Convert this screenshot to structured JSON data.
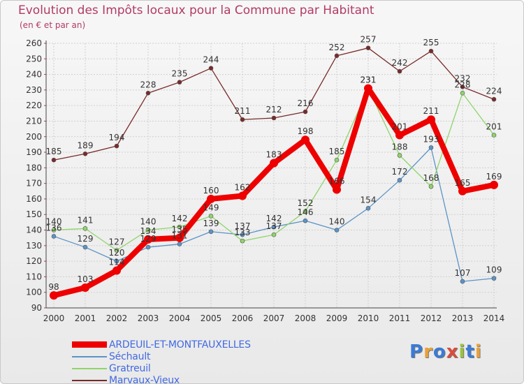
{
  "title": "Evolution des Impôts locaux pour la Commune par Habitant",
  "subtitle": "(en € et par an)",
  "logo": {
    "text": "Proxiti",
    "colors": [
      "#3a7bd5",
      "#e8a13a",
      "#3a7bd5",
      "#d94c3b",
      "#9ac23c",
      "#3a7bd5",
      "#e8a13a"
    ]
  },
  "chart_data": {
    "type": "line",
    "title": "Evolution des Impôts locaux pour la Commune par Habitant",
    "subtitle": "(en € et par an)",
    "xlabel": "",
    "ylabel": "",
    "ylim": [
      90,
      260
    ],
    "ytick_step": 10,
    "grid": true,
    "legend_position": "bottom-left",
    "x": [
      "2000",
      "2001",
      "2002",
      "2003",
      "2004",
      "2005",
      "2006",
      "2007",
      "2008",
      "2009",
      "2010",
      "2011",
      "2012",
      "2013",
      "2014"
    ],
    "series": [
      {
        "name": "ARDEUIL-ET-MONTFAUXELLES",
        "color": "#ee0000",
        "emphasis": true,
        "values": [
          98,
          103,
          114,
          134,
          135,
          160,
          162,
          183,
          198,
          166,
          231,
          201,
          211,
          165,
          169
        ],
        "labels": [
          "98",
          "103",
          "114",
          "134",
          "135",
          "160",
          "162",
          "183",
          "198",
          "166",
          "231",
          "201",
          "211",
          "165",
          "169"
        ]
      },
      {
        "name": "Séchault",
        "color": "#5b93c7",
        "values": [
          136,
          129,
          120,
          129,
          131,
          139,
          137,
          142,
          146,
          140,
          154,
          172,
          193,
          107,
          109
        ],
        "labels": [
          "136",
          "129",
          "120",
          "129",
          "131",
          "139",
          "137",
          "142",
          "146",
          "140",
          "154",
          "172",
          "193",
          "107",
          "109"
        ]
      },
      {
        "name": "Gratreuil",
        "color": "#8fd46a",
        "values": [
          140,
          141,
          127,
          140,
          142,
          149,
          133,
          137,
          152,
          185,
          231,
          188,
          168,
          228,
          201
        ],
        "labels": [
          "140",
          "141",
          "127",
          "140",
          "142",
          "149",
          "133",
          "137",
          "152",
          "185",
          "231",
          "188",
          "168",
          "228",
          "201"
        ]
      },
      {
        "name": "Marvaux-Vieux",
        "color": "#7a2a2a",
        "values": [
          185,
          189,
          194,
          228,
          235,
          244,
          211,
          212,
          216,
          252,
          257,
          242,
          255,
          232,
          224
        ],
        "labels": [
          "185",
          "189",
          "194",
          "228",
          "235",
          "244",
          "211",
          "212",
          "216",
          "252",
          "257",
          "242",
          "255",
          "232",
          "224"
        ]
      }
    ]
  }
}
